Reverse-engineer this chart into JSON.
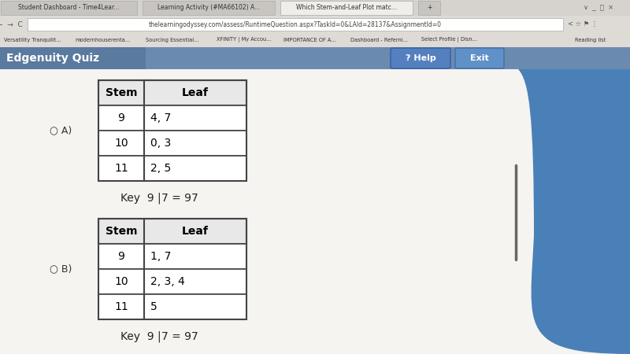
{
  "bg_color": "#c8c8c8",
  "browser_chrome_color": "#e8e6e3",
  "tab_bar_color": "#d0cdc8",
  "header_bar_color": "#6b8ab0",
  "header_text": "Edgenuity Quiz",
  "header_text_color": "#ffffff",
  "header_text_bg": "#5a7a9f",
  "page_bg": "#e8e6e2",
  "content_bg": "#f5f4f1",
  "table_border_color": "#444444",
  "right_curve_color": "#3a70a8",
  "right_bar_color": "#4a80b8",
  "divider_line_color": "#666666",
  "options": [
    {
      "label": "A)",
      "stems": [
        "9",
        "10",
        "11"
      ],
      "leaves": [
        "4, 7",
        "0, 3",
        "2, 5"
      ],
      "key_left": "Key  9",
      "key_pipe": "|",
      "key_right": "7 = 97"
    },
    {
      "label": "B)",
      "stems": [
        "9",
        "10",
        "11"
      ],
      "leaves": [
        "1, 7",
        "2, 3, 4",
        "5"
      ],
      "key_left": "Key  9",
      "key_pipe": "|",
      "key_right": "7 = 97"
    }
  ],
  "browser_tabs": [
    "Student Dashboard - Time4Lear...",
    "Learning Activity (#MA66102) A...",
    "Which Stem-and-Leaf Plot matc...",
    "+"
  ],
  "address_bar_text": "thelearningodyssey.com/assess/RuntimeQuestion.aspx?TaskId=0&LAId=28137&AssignmentId=0",
  "bookmarks": [
    "Versatility Tranquilit...",
    "modernhouserenta...",
    "Sourcing Essential...",
    "XFINITY | My Accou...",
    "IMPORTANCE OF A...",
    "Dashboard - Referni...",
    "Select Profile | Disn...",
    "Reading list"
  ]
}
